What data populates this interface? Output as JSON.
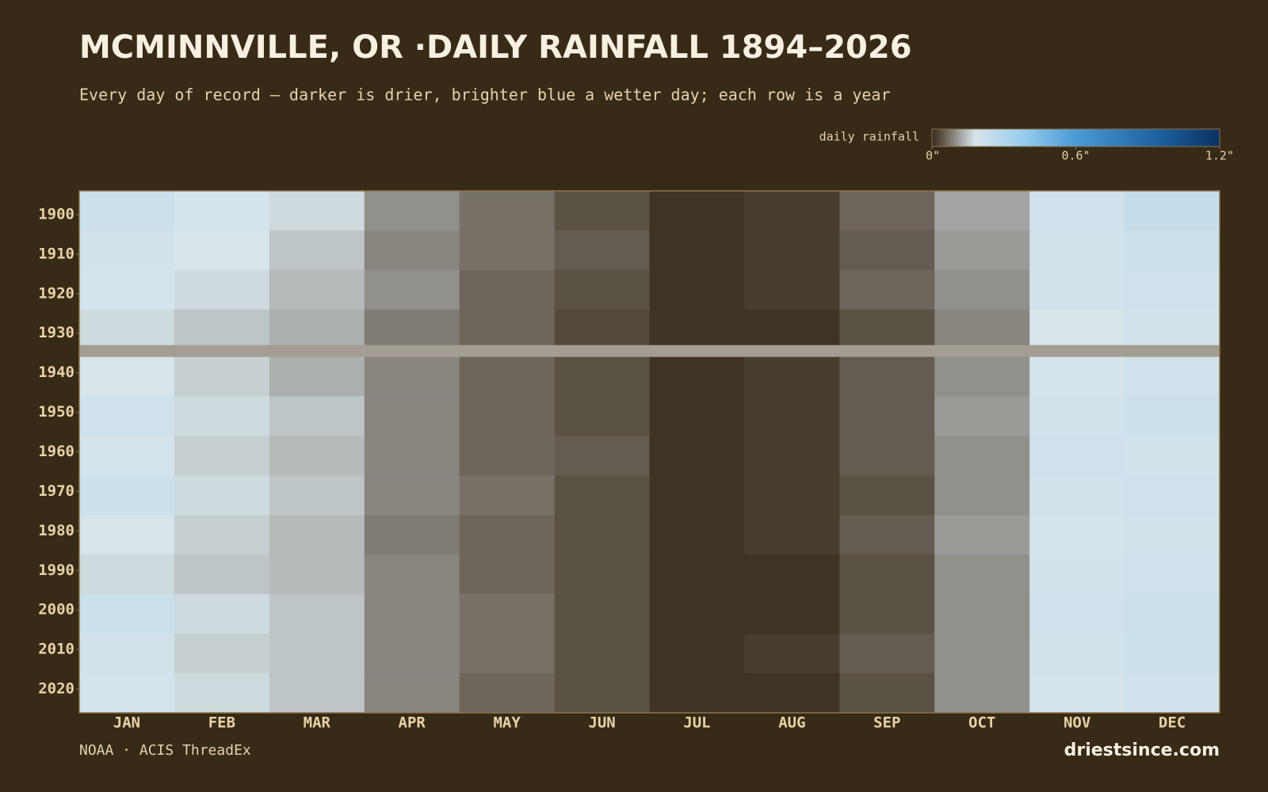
{
  "chart_data": {
    "type": "heatmap",
    "title": "MCMINNVILLE, OR ·DAILY RAINFALL 1894–2026",
    "subtitle": "Every day of record — darker is drier, brighter blue a wetter day; each row is a year",
    "colorbar_label": "daily rainfall",
    "zlim": [
      0,
      1.2
    ],
    "colorbar_ticks": [
      {
        "value": 0,
        "label": "0\""
      },
      {
        "value": 0.6,
        "label": "0.6\""
      },
      {
        "value": 1.2,
        "label": "1.2\""
      }
    ],
    "missing_color": "#a39d93",
    "categories": [
      "JAN",
      "FEB",
      "MAR",
      "APR",
      "MAY",
      "JUN",
      "JUL",
      "AUG",
      "SEP",
      "OCT",
      "NOV",
      "DEC"
    ],
    "ylim": [
      1894,
      2026
    ],
    "yticks": [
      1900,
      1910,
      1920,
      1930,
      1940,
      1950,
      1960,
      1970,
      1980,
      1990,
      2000,
      2010,
      2020
    ],
    "y_bins": [
      1894,
      1904,
      1914,
      1924,
      1933,
      1936,
      1946,
      1956,
      1966,
      1976,
      1986,
      1996,
      2006,
      2016,
      2026
    ],
    "z": [
      [
        0.22,
        0.19,
        0.17,
        0.1,
        0.07,
        0.04,
        0.01,
        0.02,
        0.06,
        0.12,
        0.21,
        0.24
      ],
      [
        0.2,
        0.18,
        0.15,
        0.09,
        0.07,
        0.05,
        0.01,
        0.02,
        0.05,
        0.11,
        0.2,
        0.22
      ],
      [
        0.19,
        0.17,
        0.14,
        0.1,
        0.06,
        0.04,
        0.01,
        0.02,
        0.06,
        0.1,
        0.2,
        0.21
      ],
      [
        0.17,
        0.15,
        0.13,
        0.08,
        0.06,
        0.03,
        0.01,
        0.01,
        0.04,
        0.09,
        0.18,
        0.2
      ],
      [
        null,
        null,
        null,
        null,
        null,
        null,
        null,
        null,
        null,
        null,
        null,
        null
      ],
      [
        0.18,
        0.16,
        0.13,
        0.09,
        0.06,
        0.04,
        0.01,
        0.02,
        0.05,
        0.1,
        0.19,
        0.21
      ],
      [
        0.21,
        0.17,
        0.15,
        0.09,
        0.06,
        0.04,
        0.01,
        0.02,
        0.05,
        0.11,
        0.2,
        0.22
      ],
      [
        0.19,
        0.16,
        0.14,
        0.09,
        0.06,
        0.05,
        0.01,
        0.02,
        0.05,
        0.1,
        0.21,
        0.2
      ],
      [
        0.22,
        0.17,
        0.15,
        0.09,
        0.07,
        0.04,
        0.01,
        0.02,
        0.04,
        0.1,
        0.2,
        0.21
      ],
      [
        0.18,
        0.16,
        0.14,
        0.08,
        0.06,
        0.04,
        0.01,
        0.02,
        0.05,
        0.11,
        0.19,
        0.2
      ],
      [
        0.17,
        0.15,
        0.14,
        0.09,
        0.06,
        0.04,
        0.01,
        0.01,
        0.04,
        0.1,
        0.2,
        0.21
      ],
      [
        0.22,
        0.17,
        0.15,
        0.09,
        0.07,
        0.04,
        0.01,
        0.01,
        0.04,
        0.1,
        0.21,
        0.22
      ],
      [
        0.2,
        0.16,
        0.15,
        0.09,
        0.07,
        0.04,
        0.01,
        0.02,
        0.05,
        0.1,
        0.2,
        0.22
      ],
      [
        0.19,
        0.17,
        0.15,
        0.09,
        0.06,
        0.04,
        0.01,
        0.01,
        0.04,
        0.1,
        0.19,
        0.21
      ]
    ],
    "source": "NOAA · ACIS ThreadEx",
    "brand": "driestsince.com"
  }
}
